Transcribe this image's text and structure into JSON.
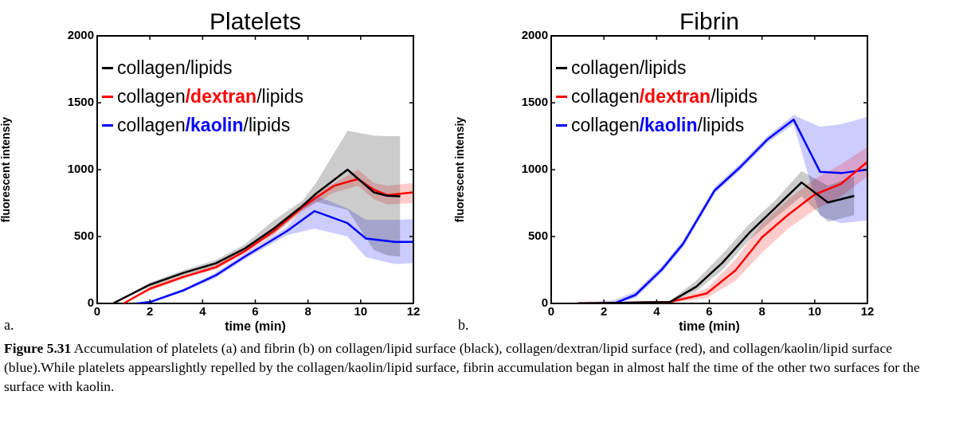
{
  "chart_data": [
    {
      "type": "line",
      "title": "Platelets",
      "xlabel": "time (min)",
      "ylabel": "fluorescent intensiy",
      "xlim": [
        0,
        12
      ],
      "xticks": [
        0,
        2,
        4,
        6,
        8,
        10,
        12
      ],
      "ylim": [
        0,
        2000
      ],
      "yticks": [
        0,
        500,
        1000,
        1500,
        2000
      ],
      "legend": "top left",
      "annotations": [
        "a.",
        "Figure 5.31 Accumulation of platelets (a) and fibrin (b) on collagen/lipid surface (black), collagen/dextran/lipid surface (red), and collagen/kaolin/lipid surface (blue).While platelets appearslightly repelled by the collagen/kaolin/lipid surface, fibrin accumulation began in almost half the time of the other two surfaces for the surface with kaolin."
      ],
      "series": [
        {
          "name": "collagen/lipids",
          "color": "#000000",
          "x": [
            0.6,
            2,
            3.3,
            4.5,
            5.6,
            6.7,
            7.8,
            8.3,
            9.5,
            10.5,
            11,
            11.5
          ],
          "values": [
            0,
            140,
            230,
            300,
            410,
            560,
            730,
            820,
            1000,
            830,
            805,
            800
          ],
          "upper": [
            0,
            155,
            250,
            325,
            440,
            620,
            770,
            900,
            1290,
            1255,
            1250,
            1250
          ],
          "lower": [
            0,
            125,
            210,
            280,
            390,
            520,
            700,
            760,
            700,
            400,
            360,
            350
          ]
        },
        {
          "name": "collagen/dextran/lipids",
          "color": "#ff0000",
          "x": [
            1,
            2,
            3.3,
            4.5,
            5.6,
            6.7,
            7.8,
            8.3,
            9,
            9.9,
            10.5,
            11,
            12
          ],
          "values": [
            0,
            110,
            200,
            270,
            390,
            540,
            720,
            790,
            880,
            930,
            850,
            810,
            830
          ],
          "upper": [
            0,
            125,
            215,
            290,
            410,
            570,
            750,
            820,
            900,
            1000,
            900,
            880,
            900
          ],
          "lower": [
            0,
            95,
            185,
            255,
            370,
            510,
            690,
            750,
            830,
            880,
            780,
            740,
            750
          ]
        },
        {
          "name": "collagen/kaolin/lipids",
          "color": "#0000ff",
          "x": [
            1.5,
            2,
            3.3,
            4.5,
            5.6,
            7.2,
            8.25,
            9.5,
            10.2,
            11.3,
            12
          ],
          "values": [
            0,
            10,
            100,
            210,
            350,
            540,
            690,
            600,
            485,
            460,
            460
          ],
          "upper": [
            0,
            20,
            110,
            230,
            370,
            570,
            810,
            710,
            625,
            625,
            630
          ],
          "lower": [
            0,
            5,
            90,
            190,
            330,
            510,
            560,
            500,
            345,
            295,
            300
          ]
        }
      ]
    },
    {
      "type": "line",
      "title": "Fibrin",
      "xlabel": "time (min)",
      "ylabel": "fluorescent intensiy",
      "xlim": [
        0,
        12
      ],
      "xticks": [
        0,
        2,
        4,
        6,
        8,
        10,
        12
      ],
      "ylim": [
        0,
        2000
      ],
      "yticks": [
        0,
        500,
        1000,
        1500,
        2000
      ],
      "legend": "top left",
      "annotations": [
        "b."
      ],
      "series": [
        {
          "name": "collagen/lipids",
          "color": "#000000",
          "x": [
            1,
            4.5,
            5.5,
            6.5,
            7.5,
            8.5,
            9.5,
            10.5,
            11.5
          ],
          "values": [
            0,
            10,
            124,
            304,
            524,
            714,
            904,
            754,
            804
          ],
          "upper": [
            0,
            20,
            170,
            370,
            590,
            770,
            990,
            880,
            950
          ],
          "lower": [
            0,
            5,
            90,
            250,
            470,
            640,
            800,
            610,
            660
          ]
        },
        {
          "name": "collagen/dextran/lipids",
          "color": "#ff0000",
          "x": [
            1,
            4.5,
            5.9,
            7,
            8,
            9,
            10,
            11,
            12
          ],
          "values": [
            0,
            10,
            74,
            248,
            494,
            664,
            814,
            894,
            1058
          ],
          "upper": [
            0,
            15,
            110,
            330,
            600,
            780,
            930,
            1040,
            1170
          ],
          "lower": [
            0,
            5,
            40,
            170,
            380,
            560,
            700,
            800,
            950
          ]
        },
        {
          "name": "collagen/kaolin/lipids",
          "color": "#0000ff",
          "x": [
            1,
            2.4,
            3.2,
            4.2,
            5,
            6.2,
            7.2,
            8.2,
            9.2,
            10.2,
            11,
            12
          ],
          "values": [
            0,
            0,
            64,
            254,
            444,
            844,
            1024,
            1224,
            1374,
            984,
            974,
            1000
          ],
          "upper": [
            0,
            25,
            90,
            280,
            470,
            870,
            1050,
            1250,
            1408,
            1320,
            1340,
            1394
          ],
          "lower": [
            0,
            0,
            40,
            230,
            420,
            820,
            1000,
            1200,
            1340,
            654,
            600,
            620
          ]
        }
      ]
    }
  ]
}
